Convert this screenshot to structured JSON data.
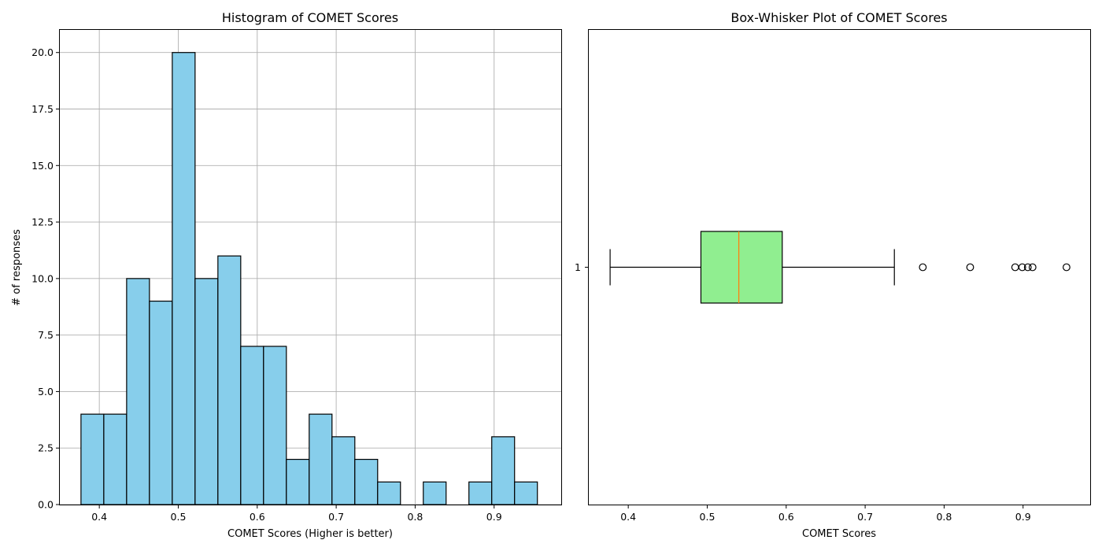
{
  "chart_data": [
    {
      "type": "bar",
      "title": "Histogram of COMET Scores",
      "xlabel": "COMET Scores (Higher is better)",
      "ylabel": "# of responses",
      "xlim": [
        0.35,
        0.985
      ],
      "ylim": [
        0,
        21
      ],
      "grid": true,
      "x_ticks": [
        0.4,
        0.5,
        0.6,
        0.7,
        0.8,
        0.9
      ],
      "x_tick_labels": [
        "0.4",
        "0.5",
        "0.6",
        "0.7",
        "0.8",
        "0.9"
      ],
      "y_ticks": [
        0,
        2.5,
        5,
        7.5,
        10,
        12.5,
        15,
        17.5,
        20
      ],
      "y_tick_labels": [
        "0.0",
        "2.5",
        "5.0",
        "7.5",
        "10.0",
        "12.5",
        "15.0",
        "17.5",
        "20.0"
      ],
      "bin_edges": [
        0.3768,
        0.4057,
        0.4346,
        0.4635,
        0.4924,
        0.5213,
        0.5502,
        0.5791,
        0.608,
        0.6369,
        0.6658,
        0.6947,
        0.7236,
        0.7525,
        0.7814,
        0.8103,
        0.8392,
        0.8681,
        0.897,
        0.9259,
        0.9548
      ],
      "values": [
        4,
        4,
        10,
        9,
        20,
        10,
        11,
        7,
        7,
        2,
        4,
        3,
        2,
        1,
        0,
        1,
        0,
        1,
        3,
        1
      ],
      "colors": {
        "bar_fill": "#87ceeb",
        "bar_edge": "#000000"
      }
    },
    {
      "type": "box",
      "title": "Box-Whisker Plot of COMET Scores",
      "xlabel": "COMET Scores",
      "xlim": [
        0.35,
        0.985
      ],
      "grid": false,
      "x_ticks": [
        0.4,
        0.5,
        0.6,
        0.7,
        0.8,
        0.9
      ],
      "x_tick_labels": [
        "0.4",
        "0.5",
        "0.6",
        "0.7",
        "0.8",
        "0.9"
      ],
      "y_tick_labels": [
        "1"
      ],
      "whisker_low": 0.377,
      "q1": 0.492,
      "median": 0.54,
      "q3": 0.595,
      "whisker_high": 0.737,
      "fliers": [
        0.773,
        0.833,
        0.89,
        0.899,
        0.906,
        0.912,
        0.955
      ],
      "colors": {
        "box_fill": "#90ee90",
        "median": "#ff7f0e"
      }
    }
  ]
}
